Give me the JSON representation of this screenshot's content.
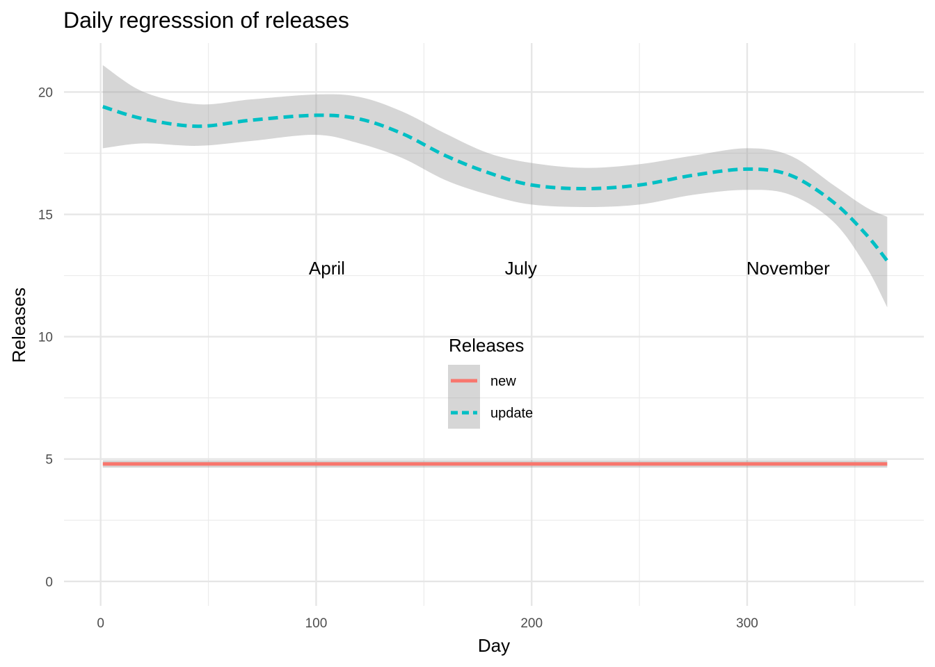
{
  "chart_data": {
    "type": "line",
    "title": "Daily regresssion of releases",
    "xlabel": "Day",
    "ylabel": "Releases",
    "xlim": [
      -17,
      382
    ],
    "ylim": [
      -1,
      22
    ],
    "x_ticks": [
      0,
      100,
      200,
      300
    ],
    "y_ticks": [
      0,
      5,
      10,
      15,
      20
    ],
    "x_minor": [
      50,
      150,
      250,
      350
    ],
    "y_minor": [
      2.5,
      7.5,
      12.5,
      17.5
    ],
    "grid": true,
    "legend": {
      "title": "Releases",
      "placement": "center",
      "entries": [
        "new",
        "update"
      ]
    },
    "annotations": [
      {
        "text": "April",
        "x": 105,
        "y": 12.8
      },
      {
        "text": "July",
        "x": 195,
        "y": 12.8
      },
      {
        "text": "November",
        "x": 319,
        "y": 12.8
      }
    ],
    "series": [
      {
        "name": "new",
        "color": "#F8766D",
        "dash": "solid",
        "x": [
          1,
          365
        ],
        "y": [
          4.8,
          4.8
        ],
        "lower": [
          4.65,
          4.65
        ],
        "upper": [
          4.95,
          4.95
        ]
      },
      {
        "name": "update",
        "color": "#00BFC4",
        "dash": "dashed",
        "x": [
          1,
          20,
          45,
          70,
          100,
          120,
          140,
          160,
          180,
          200,
          225,
          250,
          275,
          300,
          320,
          340,
          355,
          365
        ],
        "y": [
          19.4,
          18.9,
          18.6,
          18.85,
          19.05,
          18.9,
          18.3,
          17.4,
          16.7,
          16.2,
          16.05,
          16.2,
          16.6,
          16.85,
          16.6,
          15.5,
          14.2,
          13.1
        ],
        "lower": [
          17.7,
          17.9,
          17.8,
          18.0,
          18.25,
          17.9,
          17.3,
          16.4,
          15.8,
          15.4,
          15.3,
          15.4,
          15.8,
          16.0,
          15.8,
          14.7,
          12.9,
          11.2
        ],
        "upper": [
          21.1,
          20.0,
          19.5,
          19.7,
          19.9,
          19.8,
          19.2,
          18.3,
          17.5,
          17.1,
          16.9,
          17.05,
          17.4,
          17.7,
          17.4,
          16.2,
          15.3,
          14.9
        ]
      }
    ]
  }
}
